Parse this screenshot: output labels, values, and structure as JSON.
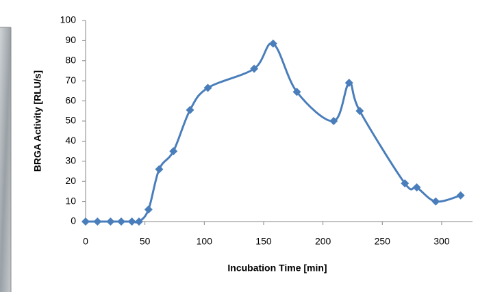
{
  "chart_data": {
    "type": "line",
    "x_label": "Incubation Time [min]",
    "y_label": "BRGA Activity [RLU/s]",
    "x": [
      0,
      10,
      21,
      30,
      39,
      45,
      53,
      62,
      74,
      88,
      103,
      142,
      158,
      178,
      209,
      222,
      231,
      269,
      279,
      295,
      316
    ],
    "series": [
      {
        "color": "#4a7ebb",
        "values": [
          0,
          0,
          0,
          0,
          0,
          0,
          6,
          26,
          35,
          55.5,
          66.5,
          76,
          88.5,
          64.5,
          50,
          69,
          55,
          19,
          17,
          10,
          13
        ]
      }
    ],
    "xlim": [
      0,
      326
    ],
    "xticks": [
      0,
      50,
      100,
      150,
      200,
      250,
      300
    ],
    "ylim": [
      0,
      100
    ],
    "yticks": [
      0,
      10,
      20,
      30,
      40,
      50,
      60,
      70,
      80,
      90,
      100
    ],
    "smooth": true,
    "marker": "diamond"
  }
}
